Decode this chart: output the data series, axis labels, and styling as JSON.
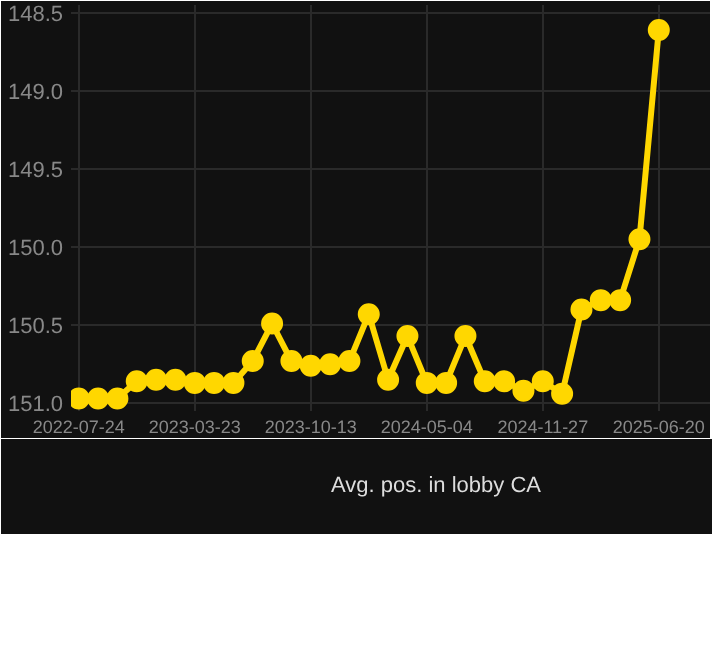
{
  "chart_data": {
    "type": "line",
    "categories": [
      "2022-07-24",
      null,
      null,
      null,
      null,
      null,
      "2023-03-23",
      null,
      null,
      null,
      null,
      null,
      "2023-10-13",
      null,
      null,
      null,
      null,
      null,
      "2024-05-04",
      null,
      null,
      null,
      null,
      null,
      "2024-11-27",
      null,
      null,
      null,
      null,
      null,
      "2025-06-20"
    ],
    "series": [
      {
        "name": "Avg. pos. in lobby CA",
        "color": "#ffd700",
        "values": [
          150.97,
          150.97,
          150.97,
          150.86,
          150.85,
          150.85,
          150.87,
          150.87,
          150.87,
          150.73,
          150.49,
          150.73,
          150.76,
          150.75,
          150.73,
          150.43,
          150.85,
          150.57,
          150.87,
          150.87,
          150.57,
          150.86,
          150.86,
          150.92,
          150.86,
          150.94,
          150.4,
          150.34,
          150.34,
          149.95,
          148.61
        ]
      }
    ],
    "ylim": [
      151.05,
      148.45
    ],
    "yticks": [
      148.5,
      {
        "value": 149,
        "label": "149.0"
      },
      149.5,
      {
        "value": 150,
        "label": "150.0"
      },
      150.5,
      {
        "value": 151,
        "label": "151.0"
      }
    ],
    "grid": true,
    "legend": "bottom",
    "marker": "circle",
    "line_style": "solid"
  }
}
